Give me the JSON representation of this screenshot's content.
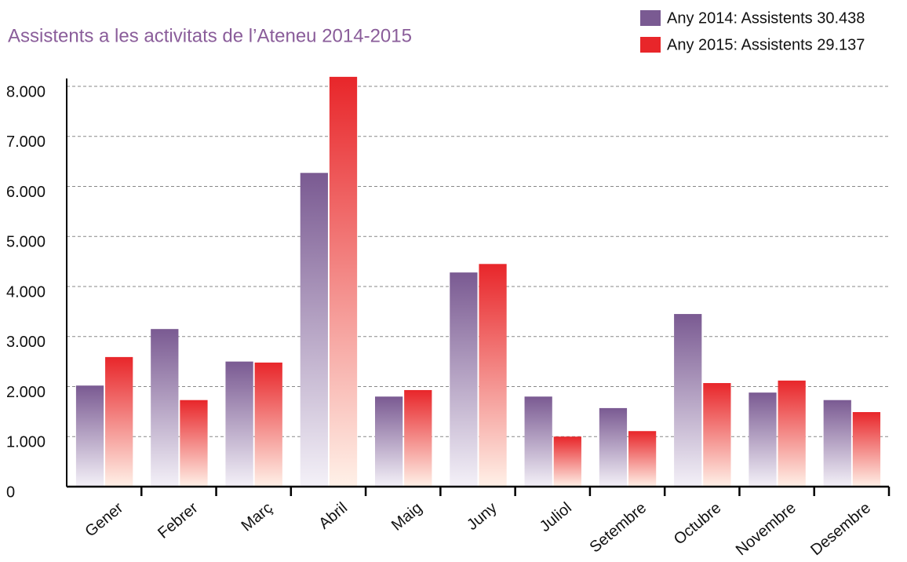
{
  "chart_data": {
    "type": "bar",
    "title": "Assistents a les activitats de l’Ateneu 2014-2015",
    "categories": [
      "Gener",
      "Febrer",
      "Març",
      "Abril",
      "Maig",
      "Juny",
      "Juliol",
      "Setembre",
      "Octubre",
      "Novembre",
      "Desembre"
    ],
    "series": [
      {
        "name": "Any 2014: Assistents 30.438",
        "color": "#7a5a92",
        "values": [
          2020,
          3150,
          2500,
          6270,
          1800,
          4280,
          1800,
          1570,
          3450,
          1880,
          1730
        ]
      },
      {
        "name": "Any 2015: Assistents 29.137",
        "color": "#e8262a",
        "values": [
          2590,
          1730,
          2480,
          8190,
          1930,
          4450,
          1000,
          1110,
          2070,
          2120,
          1490
        ]
      }
    ],
    "ylim": [
      0,
      8000
    ],
    "yticks": [
      0,
      {
        "value": 1000,
        "label": "1.000"
      },
      {
        "value": 2000,
        "label": "2.000"
      },
      {
        "value": 3000,
        "label": "3.000"
      },
      {
        "value": 4000,
        "label": "4.000"
      },
      {
        "value": 5000,
        "label": "5.000"
      },
      {
        "value": 6000,
        "label": "6.000"
      },
      {
        "value": 7000,
        "label": "7.000"
      },
      {
        "value": 8000,
        "label": "8.000"
      }
    ],
    "grid": true
  }
}
